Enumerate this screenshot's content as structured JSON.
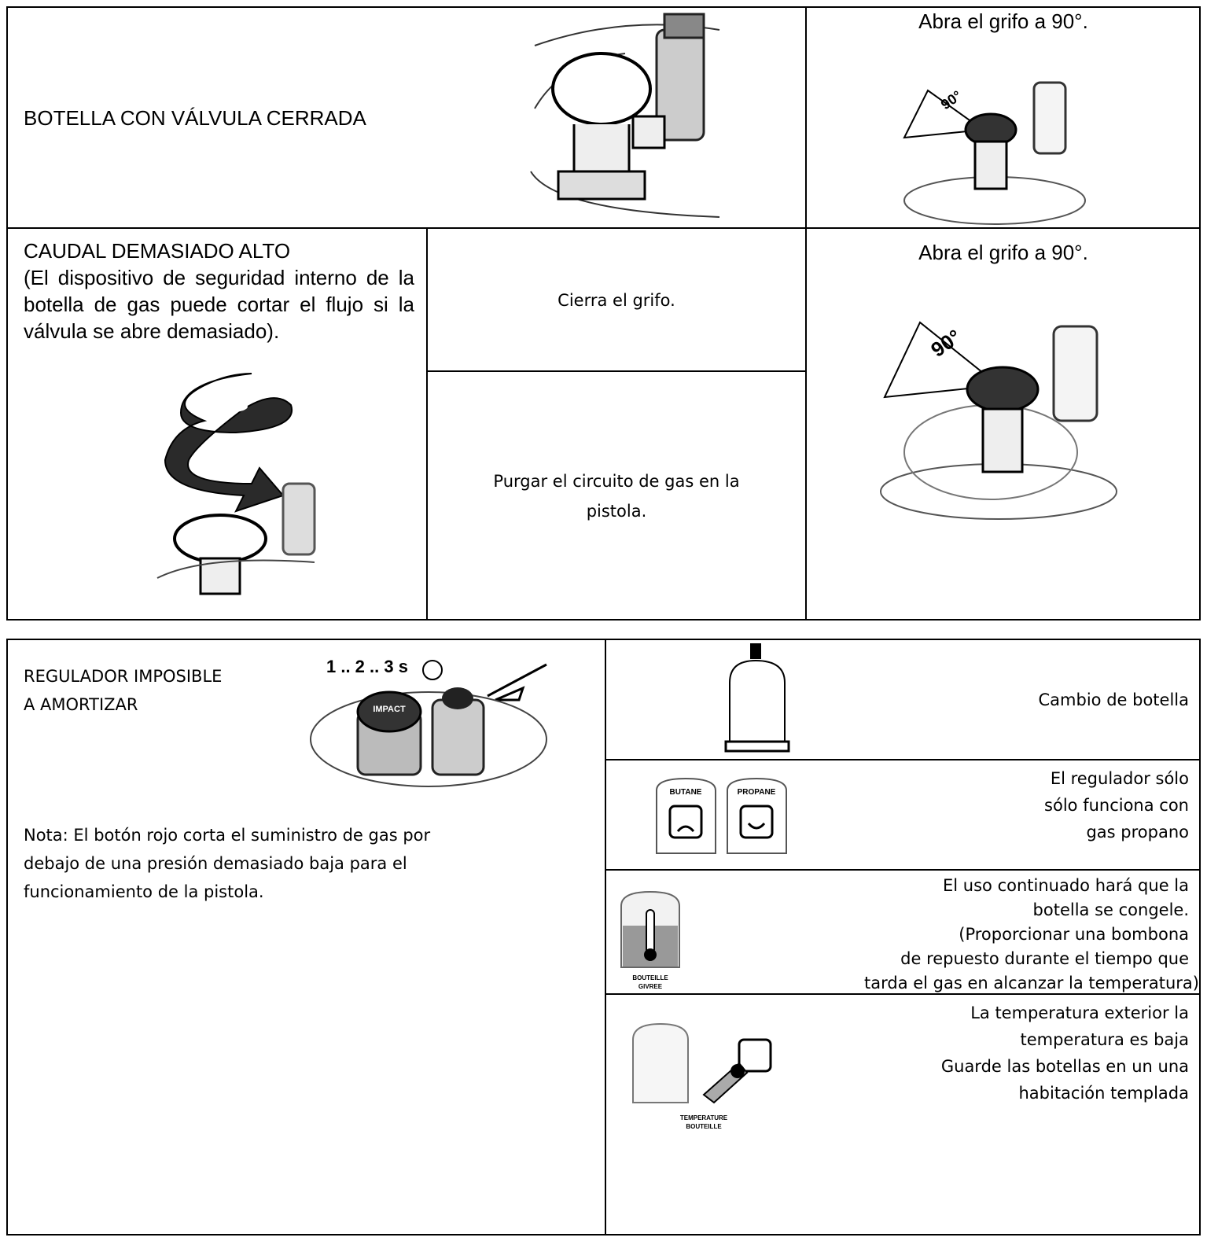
{
  "table1": {
    "row1": {
      "problem": "BOTELLA CON VÁLVULA CERRADA",
      "solution": "Abra el grifo a 90°.",
      "dial_label": "90°"
    },
    "row2": {
      "problem_title": "CAUDAL DEMASIADO ALTO",
      "problem_note": "(El dispositivo de seguridad interno de la botella de gas puede cortar el flujo si la válvula se abre demasiado).",
      "step1": "Cierra el grifo.",
      "step2_lines": [
        "Purgar el circuito de gas en la",
        "pistola."
      ],
      "solution": "Abra el grifo a 90°.",
      "dial_label": "90°"
    }
  },
  "table2": {
    "problem_lines": [
      "REGULADOR IMPOSIBLE",
      "A AMORTIZAR"
    ],
    "timer_label": "1 .. 2 .. 3 s",
    "regulator_label": "IMPACT",
    "note_lines": [
      "Nota: El botón rojo corta el suministro de gas por",
      "debajo de una presión demasiado baja para el",
      "funcionamiento de la pistola."
    ],
    "causes": [
      {
        "lines": [
          "Cambio de botella"
        ]
      },
      {
        "lines": [
          "El regulador sólo",
          "sólo funciona con",
          "gas propano"
        ],
        "icon_labels": [
          "BUTANE",
          "PROPANE"
        ]
      },
      {
        "lines": [
          "El uso continuado hará que la",
          "botella se congele.",
          "(Proporcionar una bombona",
          "de repuesto durante el tiempo que",
          "tarda el gas en alcanzar la temperatura)"
        ],
        "icon_labels": [
          "BOUTEILLE",
          "GIVREE"
        ]
      },
      {
        "lines": [
          "La temperatura exterior la",
          "temperatura es baja",
          "Guarde las botellas en un una",
          "habitación templada"
        ],
        "icon_labels": [
          "TEMPERATURE",
          "BOUTEILLE"
        ]
      }
    ]
  }
}
